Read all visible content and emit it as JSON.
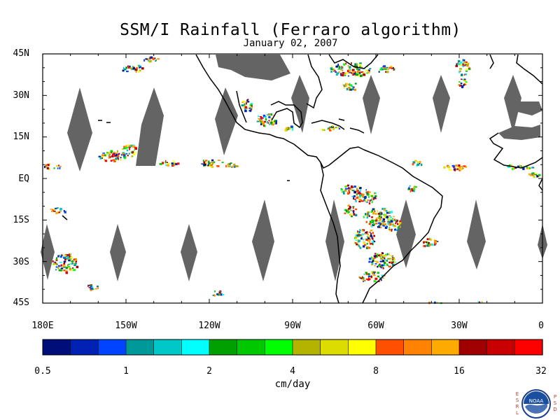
{
  "title": "SSM/I Rainfall (Ferraro algorithm)",
  "subtitle": "January 02, 2007",
  "lat_labels": [
    "45N",
    "30N",
    "15N",
    "EQ",
    "15S",
    "30S",
    "45S"
  ],
  "lon_labels": [
    "180E",
    "150W",
    "120W",
    "90W",
    "60W",
    "30W",
    "0"
  ],
  "colorbar": {
    "colors": [
      "#000e7a",
      "#0022b4",
      "#0044ff",
      "#00999a",
      "#00c8c8",
      "#00ffff",
      "#00a000",
      "#00c800",
      "#00ff00",
      "#b4b400",
      "#dcdc00",
      "#ffff00",
      "#ff5000",
      "#ff8200",
      "#ffaa00",
      "#a00000",
      "#c80000",
      "#ff0000"
    ],
    "tick_labels": [
      "0.5",
      "1",
      "2",
      "4",
      "8",
      "16",
      "32"
    ],
    "unit": "cm/day"
  },
  "colors": {
    "no_data": "#646464",
    "coastline": "#000000"
  },
  "logo": {
    "name": "noaa-logo-icon",
    "left_letters": "E S R L",
    "right_letters": "P S D",
    "text": "NOAA"
  }
}
